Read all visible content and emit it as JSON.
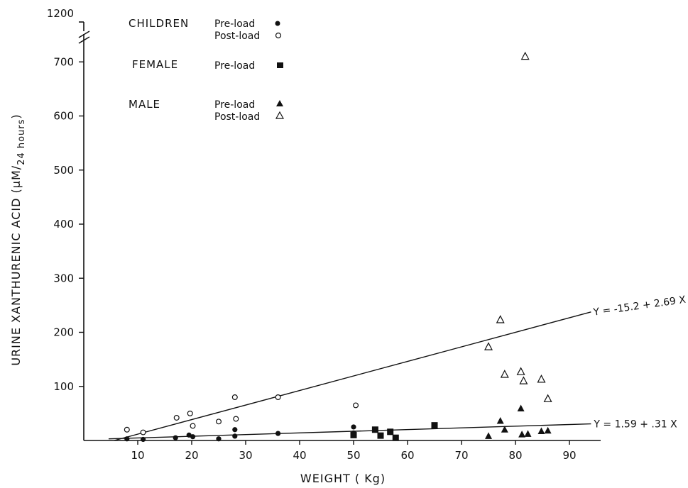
{
  "chart_data": {
    "type": "scatter",
    "title": "",
    "xlabel": "WEIGHT ( Kg)",
    "ylabel": "URINE XANTHURENIC ACID (µM/24 hours)",
    "ylabel_main": "URINE XANTHURENIC ACID (µM",
    "ylabel_sub": "24 hours",
    "ylabel_end": ")",
    "xlim": [
      0,
      95
    ],
    "ylim": [
      0,
      725
    ],
    "y_break": true,
    "y_break_label": "1200",
    "x_ticks": [
      10,
      20,
      30,
      40,
      50,
      60,
      70,
      80,
      90
    ],
    "x_tick_labels": [
      "10",
      "20",
      "30",
      "40",
      "50",
      "60",
      "70",
      "80",
      "90"
    ],
    "y_ticks": [
      100,
      200,
      300,
      400,
      500,
      600,
      700
    ],
    "y_tick_labels": [
      "100",
      "200",
      "300",
      "400",
      "500",
      "600",
      "700"
    ],
    "grid": false,
    "legend_position": "top-left",
    "legend": [
      {
        "group": "CHILDREN",
        "entries": [
          {
            "label": "Pre-load",
            "marker": "filled-circle"
          },
          {
            "label": "Post-load",
            "marker": "open-circle"
          }
        ]
      },
      {
        "group": "FEMALE",
        "entries": [
          {
            "label": "Pre-load",
            "marker": "filled-square"
          }
        ]
      },
      {
        "group": "MALE",
        "entries": [
          {
            "label": "Pre-load",
            "marker": "filled-triangle"
          },
          {
            "label": "Post-load",
            "marker": "open-triangle"
          }
        ]
      }
    ],
    "series": [
      {
        "name": "Children Pre-load",
        "marker": "filled-circle",
        "points": [
          [
            8,
            3
          ],
          [
            11,
            2
          ],
          [
            17,
            5
          ],
          [
            19.5,
            10
          ],
          [
            20.2,
            7
          ],
          [
            25,
            3
          ],
          [
            28,
            8
          ],
          [
            28,
            20
          ],
          [
            36,
            13
          ],
          [
            50,
            25
          ],
          [
            50,
            14
          ]
        ]
      },
      {
        "name": "Children Post-load",
        "marker": "open-circle",
        "points": [
          [
            8,
            20
          ],
          [
            11,
            15
          ],
          [
            17.2,
            42
          ],
          [
            19.7,
            50
          ],
          [
            20.2,
            27
          ],
          [
            25,
            35
          ],
          [
            28,
            80
          ],
          [
            28.2,
            40
          ],
          [
            36,
            80
          ],
          [
            50.4,
            65
          ]
        ]
      },
      {
        "name": "Female Pre-load",
        "marker": "filled-square",
        "points": [
          [
            50,
            10
          ],
          [
            54,
            20
          ],
          [
            55,
            9
          ],
          [
            56.8,
            16
          ],
          [
            57.8,
            5
          ],
          [
            65,
            28
          ]
        ]
      },
      {
        "name": "Male Pre-load",
        "marker": "filled-triangle",
        "points": [
          [
            75,
            8
          ],
          [
            77.2,
            36
          ],
          [
            78,
            20
          ],
          [
            81,
            59
          ],
          [
            81.2,
            11
          ],
          [
            82.3,
            12
          ],
          [
            84.8,
            17
          ],
          [
            86,
            18
          ]
        ]
      },
      {
        "name": "Male Post-load",
        "marker": "open-triangle",
        "points": [
          [
            75,
            173
          ],
          [
            77.2,
            223
          ],
          [
            78,
            122
          ],
          [
            81,
            127
          ],
          [
            81.5,
            110
          ],
          [
            84.8,
            113
          ],
          [
            86,
            77
          ],
          [
            81.8,
            710
          ]
        ]
      }
    ],
    "lines": [
      {
        "label": "Y = -15.2 + 2.69 X",
        "intercept": -15.2,
        "slope": 2.69,
        "x_end": 94
      },
      {
        "label": "Y = 1.59 + .31 X",
        "intercept": 1.59,
        "slope": 0.31,
        "x_end": 94
      }
    ]
  }
}
